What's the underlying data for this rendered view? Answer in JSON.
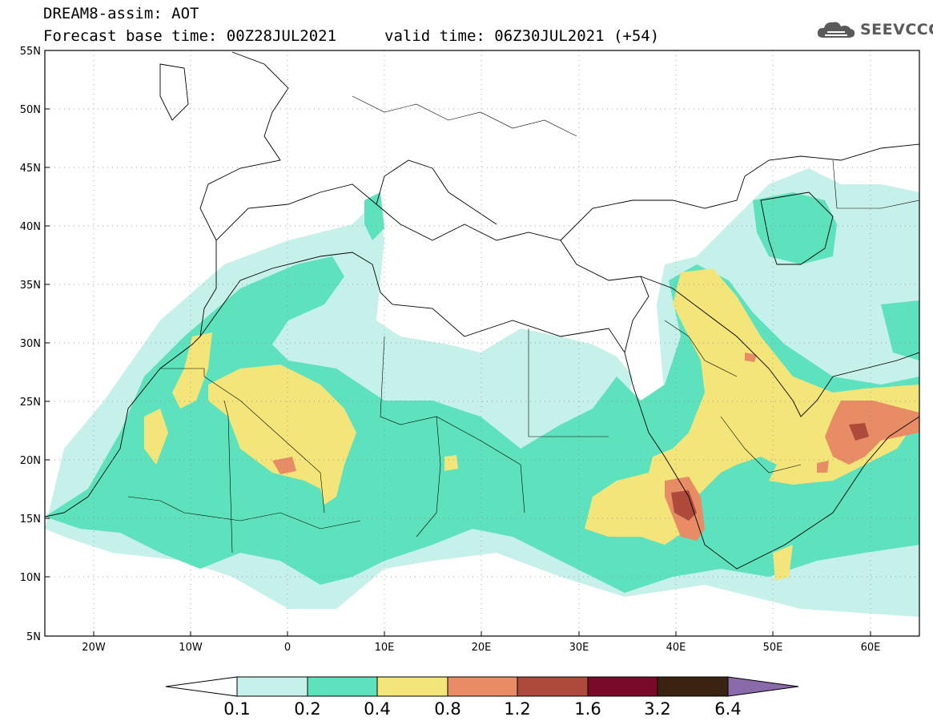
{
  "header": {
    "model_line": "DREAM8-assim: AOT",
    "base_time_line": "Forecast base time: 00Z28JUL2021",
    "valid_time_line": "valid time: 06Z30JUL2021 (+54)"
  },
  "logo": {
    "text": "SEEVCCC",
    "icon": "cloud-icon"
  },
  "map": {
    "lat_labels": [
      "55N",
      "50N",
      "45N",
      "40N",
      "35N",
      "30N",
      "25N",
      "20N",
      "15N",
      "10N",
      "5N"
    ],
    "lon_labels": [
      "20W",
      "10W",
      "0",
      "10E",
      "20E",
      "30E",
      "40E",
      "50E",
      "60E"
    ]
  },
  "colorbar": {
    "labels": [
      "0.1",
      "0.2",
      "0.4",
      "0.8",
      "1.2",
      "1.6",
      "3.2",
      "6.4"
    ],
    "colors": {
      "under": "#ffffff",
      "bin_0_1_0_2": "#c6f0ea",
      "bin_0_2_0_4": "#5ee2be",
      "bin_0_4_0_8": "#f3e57a",
      "bin_0_8_1_2": "#e88c66",
      "bin_1_2_1_6": "#ad4a3b",
      "bin_1_6_3_2": "#7a0a2a",
      "bin_3_2_6_4": "#3a2310",
      "over": "#8a6aaa"
    }
  }
}
